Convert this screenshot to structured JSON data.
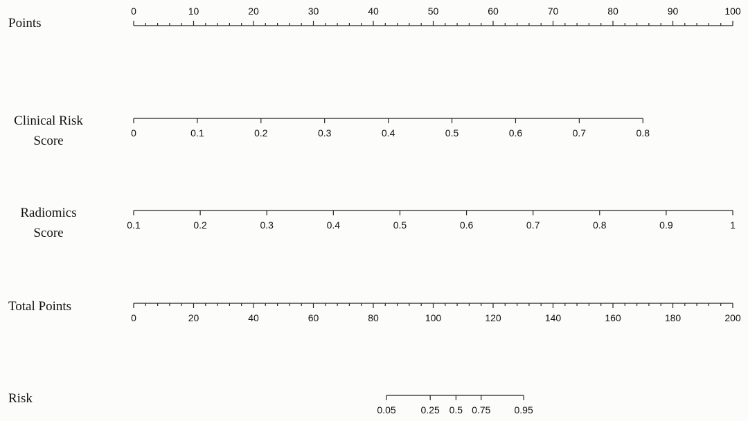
{
  "chart_data": {
    "type": "nomogram",
    "xlim": [
      0,
      100
    ],
    "rows": [
      {
        "label": [
          "Points"
        ],
        "xlim": [
          0,
          100
        ],
        "span": [
          0,
          100
        ],
        "tick_side": "above",
        "ticks": [
          0,
          10,
          20,
          30,
          40,
          50,
          60,
          70,
          80,
          90,
          100
        ],
        "minor_ticks": [
          2,
          4,
          6,
          8,
          12,
          14,
          16,
          18,
          22,
          24,
          26,
          28,
          32,
          34,
          36,
          38,
          42,
          44,
          46,
          48,
          52,
          54,
          56,
          58,
          62,
          64,
          66,
          68,
          72,
          74,
          76,
          78,
          82,
          84,
          86,
          88,
          92,
          94,
          96,
          98
        ]
      },
      {
        "label": [
          "Clinical Risk",
          "Score"
        ],
        "xlim": [
          0,
          0.8
        ],
        "span": [
          0,
          85
        ],
        "tick_side": "below",
        "ticks": [
          0,
          0.1,
          0.2,
          0.3,
          0.4,
          0.5,
          0.6,
          0.7,
          0.8
        ]
      },
      {
        "label": [
          "Radiomics",
          "Score"
        ],
        "xlim": [
          0.1,
          1
        ],
        "span": [
          0,
          100
        ],
        "tick_side": "below",
        "ticks": [
          0.1,
          0.2,
          0.3,
          0.4,
          0.5,
          0.6,
          0.7,
          0.8,
          0.9,
          1
        ]
      },
      {
        "label": [
          "Total Points"
        ],
        "xlim": [
          0,
          200
        ],
        "span": [
          0,
          100
        ],
        "tick_side": "below",
        "ticks": [
          0,
          20,
          40,
          60,
          80,
          100,
          120,
          140,
          160,
          180,
          200
        ],
        "minor_ticks": [
          4,
          8,
          12,
          16,
          24,
          28,
          32,
          36,
          44,
          48,
          52,
          56,
          64,
          68,
          72,
          76,
          84,
          88,
          92,
          96,
          104,
          108,
          112,
          116,
          124,
          128,
          132,
          136,
          144,
          148,
          152,
          156,
          164,
          168,
          172,
          176,
          184,
          188,
          192,
          196
        ]
      },
      {
        "label": [
          "Risk"
        ],
        "tick_side": "below",
        "ticks": [
          0.05,
          0.25,
          0.5,
          0.75,
          0.95
        ],
        "tick_points": [
          42.2,
          49.5,
          53.8,
          58.0,
          65.1
        ]
      }
    ]
  }
}
